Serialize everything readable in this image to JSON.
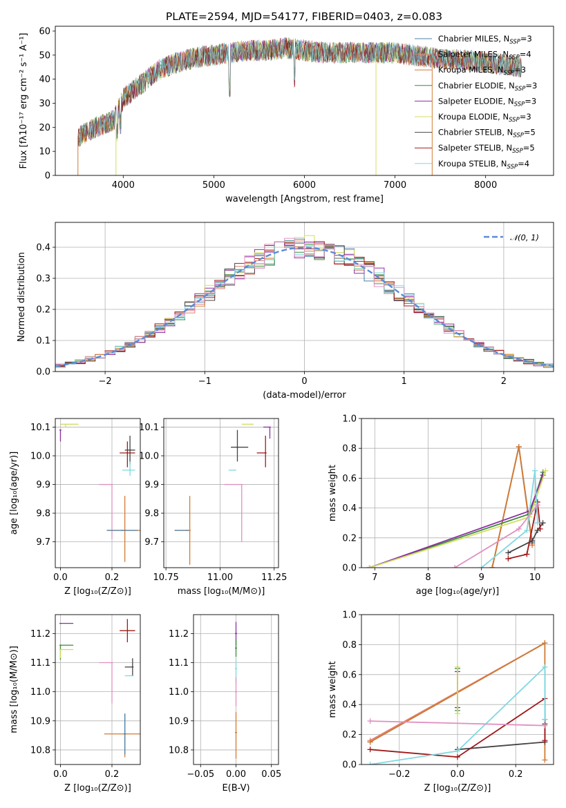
{
  "title": "PLATE=2594, MJD=54177, FIBERID=0403, z=0.083",
  "chart_data": [
    {
      "id": "spectrum",
      "type": "line",
      "xlabel": "wavelength [Angstrom, rest frame]",
      "ylabel": "Flux [fλ10⁻¹⁷ erg cm⁻² s⁻¹ A⁻¹]",
      "xlim": [
        3250,
        8750
      ],
      "ylim": [
        0,
        62
      ],
      "xticks": [
        4000,
        5000,
        6000,
        7000,
        8000
      ],
      "yticks": [
        0,
        10,
        20,
        30,
        40,
        50,
        60
      ],
      "legend_position": "top-right",
      "continuum": {
        "x": [
          3500,
          3700,
          3900,
          4000,
          4200,
          4400,
          4600,
          4800,
          5000,
          5200,
          5400,
          5600,
          5800,
          6000,
          6200,
          6400,
          6600,
          6800,
          7000,
          7200,
          7400,
          7600,
          7800,
          8000,
          8200,
          8400
        ],
        "y": [
          16,
          20,
          23,
          32,
          38,
          44,
          47,
          49,
          50,
          51,
          52,
          52,
          53,
          52,
          51,
          51,
          51,
          51,
          51,
          50,
          49,
          48,
          48,
          47,
          46,
          45
        ]
      },
      "series": [
        {
          "name": "Chabrier MILES, N_SSP=3",
          "label_main": "Chabrier MILES, N",
          "label_sub": "SSP",
          "label_tail": "=3",
          "color": "#4a7fa8"
        },
        {
          "name": "Salpeter MILES, N_SSP=4",
          "label_main": "Salpeter MILES, N",
          "label_sub": "SSP",
          "label_tail": "=4",
          "color": "#e08070"
        },
        {
          "name": "Kroupa MILES, N_SSP=3",
          "label_main": "Kroupa MILES, N",
          "label_sub": "SSP",
          "label_tail": "=3",
          "color": "#d27a30"
        },
        {
          "name": "Chabrier ELODIE, N_SSP=3",
          "label_main": "Chabrier ELODIE, N",
          "label_sub": "SSP",
          "label_tail": "=3",
          "color": "#3a8a3a"
        },
        {
          "name": "Salpeter ELODIE, N_SSP=3",
          "label_main": "Salpeter ELODIE, N",
          "label_sub": "SSP",
          "label_tail": "=3",
          "color": "#8b2fa0"
        },
        {
          "name": "Kroupa ELODIE, N_SSP=3",
          "label_main": "Kroupa ELODIE, N",
          "label_sub": "SSP",
          "label_tail": "=3",
          "color": "#d4dc60"
        },
        {
          "name": "Chabrier STELIB, N_SSP=5",
          "label_main": "Chabrier STELIB, N",
          "label_sub": "SSP",
          "label_tail": "=5",
          "color": "#444444"
        },
        {
          "name": "Salpeter STELIB, N_SSP=5",
          "label_main": "Salpeter STELIB, N",
          "label_sub": "SSP",
          "label_tail": "=5",
          "color": "#a01818"
        },
        {
          "name": "Kroupa STELIB, N_SSP=4",
          "label_main": "Kroupa STELIB, N",
          "label_sub": "SSP",
          "label_tail": "=4",
          "color": "#80d8e0"
        }
      ],
      "dropouts": [
        {
          "x": 3500,
          "color": "#d27a30"
        },
        {
          "x": 3920,
          "color": "#d4dc60"
        },
        {
          "x": 6790,
          "color": "#d4dc60"
        },
        {
          "x": 7410,
          "color": "#d27a30"
        }
      ]
    },
    {
      "id": "residuals",
      "type": "histogram",
      "xlabel": "(data-model)/error",
      "ylabel": "Normed distribution",
      "xlim": [
        -2.5,
        2.5
      ],
      "ylim": [
        0,
        0.48
      ],
      "xticks": [
        -2,
        -1,
        0,
        1,
        2
      ],
      "yticks": [
        0.0,
        0.1,
        0.2,
        0.3,
        0.4
      ],
      "xticklabels": [
        "−2",
        "−1",
        "0",
        "1",
        "2"
      ],
      "grid": true,
      "bin_edges_range": [
        -2.5,
        2.5
      ],
      "n_bins": 50,
      "reference": {
        "name": "𝒩(0, 1)",
        "color": "#5a8ad8",
        "mean": 0,
        "sigma": 1
      },
      "legend_position": "top-right"
    },
    {
      "id": "age-Z",
      "type": "scatter",
      "xlabel": "Z [log₁₀(Z/Z⊙)]",
      "ylabel": "age  [log₁₀(age/yr)]",
      "xlim": [
        -0.02,
        0.31
      ],
      "ylim": [
        9.61,
        10.13
      ],
      "xticks": [
        0.0,
        0.2
      ],
      "yticks": [
        9.7,
        9.8,
        9.9,
        10.0,
        10.1
      ],
      "grid": true,
      "points": [
        {
          "x": 0.02,
          "y": 10.11,
          "xerr": [
            0.02,
            0.05
          ],
          "yerr": [
            0.01,
            0.0
          ],
          "color": "#d4dc60"
        },
        {
          "x": 0.0,
          "y": 10.09,
          "xerr": [
            0.0,
            0.0
          ],
          "yerr": [
            0.04,
            0.0
          ],
          "color": "#8b2fa0"
        },
        {
          "x": 0.27,
          "y": 10.02,
          "xerr": [
            0.02,
            0.02
          ],
          "yerr": [
            0.05,
            0.05
          ],
          "color": "#444444"
        },
        {
          "x": 0.26,
          "y": 10.01,
          "xerr": [
            0.03,
            0.03
          ],
          "yerr": [
            0.05,
            0.04
          ],
          "color": "#a01818"
        },
        {
          "x": 0.27,
          "y": 9.95,
          "xerr": [
            0.03,
            0.02
          ],
          "yerr": [
            0.02,
            0.03
          ],
          "color": "#80d8e0"
        },
        {
          "x": 0.2,
          "y": 9.9,
          "xerr": [
            0.05,
            0.0
          ],
          "yerr": [
            0.19,
            0.0
          ],
          "color": "#e090c0"
        },
        {
          "x": 0.25,
          "y": 9.74,
          "xerr": [
            0.07,
            0.06
          ],
          "yerr": [
            0.11,
            0.12
          ],
          "color": "#d27a30"
        },
        {
          "x": 0.24,
          "y": 9.74,
          "xerr": [
            0.06,
            0.06
          ],
          "yerr": [
            0.0,
            0.0
          ],
          "color": "#4a7fa8"
        }
      ]
    },
    {
      "id": "age-mass",
      "type": "scatter",
      "xlabel": "mass [log₁₀(M/M⊙)]",
      "ylabel": "",
      "xlim": [
        10.74,
        11.27
      ],
      "ylim": [
        9.61,
        10.13
      ],
      "xticks": [
        10.75,
        11.0,
        11.25
      ],
      "yticks": [
        9.7,
        9.8,
        9.9,
        10.0,
        10.1
      ],
      "grid": true,
      "points": [
        {
          "x": 11.15,
          "y": 10.11,
          "xerr": [
            0.05,
            0.0
          ],
          "yerr": [
            0.0,
            0.0
          ],
          "color": "#d4dc60"
        },
        {
          "x": 11.23,
          "y": 10.1,
          "xerr": [
            0.03,
            0.0
          ],
          "yerr": [
            0.04,
            0.0
          ],
          "color": "#8b2fa0"
        },
        {
          "x": 11.08,
          "y": 10.03,
          "xerr": [
            0.03,
            0.05
          ],
          "yerr": [
            0.05,
            0.06
          ],
          "color": "#444444"
        },
        {
          "x": 11.21,
          "y": 10.01,
          "xerr": [
            0.04,
            0.0
          ],
          "yerr": [
            0.05,
            0.06
          ],
          "color": "#a01818"
        },
        {
          "x": 11.07,
          "y": 9.95,
          "xerr": [
            0.03,
            0.0
          ],
          "yerr": [
            0.0,
            0.0
          ],
          "color": "#80d8e0"
        },
        {
          "x": 11.1,
          "y": 9.9,
          "xerr": [
            0.08,
            0.0
          ],
          "yerr": [
            0.2,
            0.0
          ],
          "color": "#e090c0"
        },
        {
          "x": 10.86,
          "y": 9.74,
          "xerr": [
            0.07,
            0.0
          ],
          "yerr": [
            0.12,
            0.12
          ],
          "color": "#d27a30"
        },
        {
          "x": 10.85,
          "y": 9.74,
          "xerr": [
            0.06,
            0.0
          ],
          "yerr": [
            0.0,
            0.0
          ],
          "color": "#4a7fa8"
        }
      ]
    },
    {
      "id": "weight-age",
      "type": "line",
      "xlabel": "age  [log₁₀(age/yr)]",
      "ylabel": "mass weight",
      "xlim": [
        6.75,
        10.35
      ],
      "ylim": [
        0,
        1.0
      ],
      "xticks": [
        7,
        8,
        9,
        10
      ],
      "yticks": [
        0.0,
        0.2,
        0.4,
        0.6,
        0.8,
        1.0
      ],
      "grid": true,
      "series": [
        {
          "name": "Chabrier MILES",
          "color": "#4a7fa8",
          "x": [
            9.2,
            9.7,
            9.95
          ],
          "y": [
            0.0,
            0.81,
            0.17
          ]
        },
        {
          "name": "Salpeter MILES",
          "color": "#e08070",
          "x": [
            9.2,
            9.7,
            9.95
          ],
          "y": [
            0.0,
            0.81,
            0.15
          ]
        },
        {
          "name": "Kroupa MILES",
          "color": "#d27a30",
          "x": [
            9.2,
            9.7,
            9.95
          ],
          "y": [
            0.0,
            0.81,
            0.16
          ]
        },
        {
          "name": "Chabrier ELODIE",
          "color": "#3a8a3a",
          "x": [
            6.9,
            9.9,
            10.15
          ],
          "y": [
            0.0,
            0.36,
            0.64
          ]
        },
        {
          "name": "Salpeter ELODIE",
          "color": "#8b2fa0",
          "x": [
            6.9,
            9.9,
            10.15
          ],
          "y": [
            0.0,
            0.38,
            0.62
          ]
        },
        {
          "name": "Kroupa ELODIE",
          "color": "#d4dc60",
          "x": [
            6.9,
            9.9,
            10.2
          ],
          "y": [
            0.0,
            0.34,
            0.65
          ]
        },
        {
          "name": "Chabrier STELIB",
          "color": "#444444",
          "x": [
            9.5,
            9.95,
            10.05,
            10.15
          ],
          "y": [
            0.1,
            0.18,
            0.25,
            0.3
          ]
        },
        {
          "name": "Salpeter STELIB",
          "color": "#a01818",
          "x": [
            9.5,
            9.85,
            10.05,
            10.1
          ],
          "y": [
            0.06,
            0.09,
            0.44,
            0.26
          ]
        },
        {
          "name": "Kroupa STELIB",
          "color": "#80d8e0",
          "x": [
            9.0,
            9.85,
            10.0,
            10.05
          ],
          "y": [
            0.0,
            0.25,
            0.65,
            0.3
          ]
        },
        {
          "name": "pink",
          "color": "#e090c0",
          "x": [
            8.5,
            9.7,
            10.05
          ],
          "y": [
            0.0,
            0.26,
            0.42
          ]
        }
      ]
    },
    {
      "id": "mass-Z",
      "type": "scatter",
      "xlabel": "Z [log₁₀(Z/Z⊙)]",
      "ylabel": "mass [log₁₀(M/M⊙)]",
      "xlim": [
        -0.02,
        0.31
      ],
      "ylim": [
        10.75,
        11.265
      ],
      "xticks": [
        0.0,
        0.2
      ],
      "yticks": [
        10.8,
        10.9,
        11.0,
        11.1,
        11.2
      ],
      "grid": true,
      "points": [
        {
          "x": 0.0,
          "y": 11.235,
          "xerr": [
            0.0,
            0.05
          ],
          "yerr": [
            0.0,
            0.0
          ],
          "color": "#8b2fa0"
        },
        {
          "x": 0.26,
          "y": 11.21,
          "xerr": [
            0.03,
            0.03
          ],
          "yerr": [
            0.04,
            0.04
          ],
          "color": "#a01818"
        },
        {
          "x": 0.0,
          "y": 11.16,
          "xerr": [
            0.0,
            0.05
          ],
          "yerr": [
            0.05,
            0.0
          ],
          "color": "#3a8a3a"
        },
        {
          "x": 0.0,
          "y": 11.145,
          "xerr": [
            0.0,
            0.05
          ],
          "yerr": [
            0.03,
            0.0
          ],
          "color": "#d4dc60"
        },
        {
          "x": 0.2,
          "y": 11.1,
          "xerr": [
            0.05,
            0.0
          ],
          "yerr": [
            0.14,
            0.0
          ],
          "color": "#e090c0"
        },
        {
          "x": 0.28,
          "y": 11.085,
          "xerr": [
            0.03,
            0.0
          ],
          "yerr": [
            0.03,
            0.03
          ],
          "color": "#444444"
        },
        {
          "x": 0.28,
          "y": 11.055,
          "xerr": [
            0.03,
            0.0
          ],
          "yerr": [
            0.0,
            0.0
          ],
          "color": "#80d8e0"
        },
        {
          "x": 0.25,
          "y": 10.855,
          "xerr": [
            0.08,
            0.07
          ],
          "yerr": [
            0.08,
            0.07
          ],
          "color": "#d27a30"
        },
        {
          "x": 0.25,
          "y": 10.855,
          "xerr": [
            0.0,
            0.0
          ],
          "yerr": [
            0.07,
            0.07
          ],
          "color": "#4a7fa8"
        }
      ]
    },
    {
      "id": "mass-EBV",
      "type": "scatter",
      "xlabel": "E(B-V)",
      "ylabel": "",
      "xlim": [
        -0.06,
        0.06
      ],
      "ylim": [
        10.75,
        11.265
      ],
      "xticks": [
        -0.05,
        0.0,
        0.05
      ],
      "xticklabels": [
        "−0.05",
        "0.00",
        "0.05"
      ],
      "yticks": [
        10.8,
        10.9,
        11.0,
        11.1,
        11.2
      ],
      "grid": true,
      "points": [
        {
          "x": 0.0,
          "y": 11.2,
          "xerr": [
            0,
            0
          ],
          "yerr": [
            0.04,
            0.04
          ],
          "color": "#8b2fa0"
        },
        {
          "x": 0.0,
          "y": 11.15,
          "xerr": [
            0,
            0
          ],
          "yerr": [
            0.03,
            0.03
          ],
          "color": "#3a8a3a"
        },
        {
          "x": 0.0,
          "y": 11.08,
          "xerr": [
            0,
            0
          ],
          "yerr": [
            0.05,
            0.03
          ],
          "color": "#80d8e0"
        },
        {
          "x": 0.0,
          "y": 11.0,
          "xerr": [
            0,
            0
          ],
          "yerr": [
            0.05,
            0.05
          ],
          "color": "#e090c0"
        },
        {
          "x": 0.0,
          "y": 10.86,
          "xerr": [
            0,
            0
          ],
          "yerr": [
            0.09,
            0.07
          ],
          "color": "#d27a30"
        }
      ]
    },
    {
      "id": "weight-Z",
      "type": "line",
      "xlabel": "Z [log₁₀(Z/Z⊙)]",
      "ylabel": "mass weight",
      "xlim": [
        -0.33,
        0.33
      ],
      "ylim": [
        0,
        1.0
      ],
      "xticks": [
        -0.2,
        0.0,
        0.2
      ],
      "xticklabels": [
        "−0.2",
        "0.0",
        "0.2"
      ],
      "yticks": [
        0.0,
        0.2,
        0.4,
        0.6,
        0.8,
        1.0
      ],
      "grid": true,
      "series": [
        {
          "name": "Chabrier MILES",
          "color": "#4a7fa8",
          "x": [
            -0.3,
            0.3
          ],
          "y": [
            0.15,
            0.81
          ]
        },
        {
          "name": "Salpeter MILES",
          "color": "#e08070",
          "x": [
            -0.3,
            0.3
          ],
          "y": [
            0.16,
            0.81
          ]
        },
        {
          "name": "Kroupa MILES",
          "color": "#d27a30",
          "x": [
            -0.3,
            0.3,
            0.3
          ],
          "y": [
            0.15,
            0.81,
            0.03
          ]
        },
        {
          "name": "Chabrier ELODIE",
          "color": "#3a8a3a",
          "x": [
            0.0,
            0.0
          ],
          "y": [
            0.36,
            0.64
          ]
        },
        {
          "name": "Salpeter ELODIE",
          "color": "#8b2fa0",
          "x": [
            0.0,
            0.0
          ],
          "y": [
            0.38,
            0.62
          ]
        },
        {
          "name": "Kroupa ELODIE",
          "color": "#d4dc60",
          "x": [
            0.0,
            0.0
          ],
          "y": [
            0.34,
            0.65
          ]
        },
        {
          "name": "Chabrier STELIB",
          "color": "#444444",
          "x": [
            0.0,
            0.3,
            0.3,
            0.3
          ],
          "y": [
            0.1,
            0.15,
            0.3,
            0.27
          ]
        },
        {
          "name": "Salpeter STELIB",
          "color": "#a01818",
          "x": [
            -0.3,
            0.0,
            0.3,
            0.3
          ],
          "y": [
            0.1,
            0.05,
            0.44,
            0.16
          ]
        },
        {
          "name": "Kroupa STELIB",
          "color": "#80d8e0",
          "x": [
            -0.3,
            0.0,
            0.3,
            0.3
          ],
          "y": [
            0.0,
            0.09,
            0.65,
            0.3
          ]
        },
        {
          "name": "pink",
          "color": "#e090c0",
          "x": [
            -0.3,
            0.3
          ],
          "y": [
            0.29,
            0.26
          ]
        }
      ]
    }
  ]
}
